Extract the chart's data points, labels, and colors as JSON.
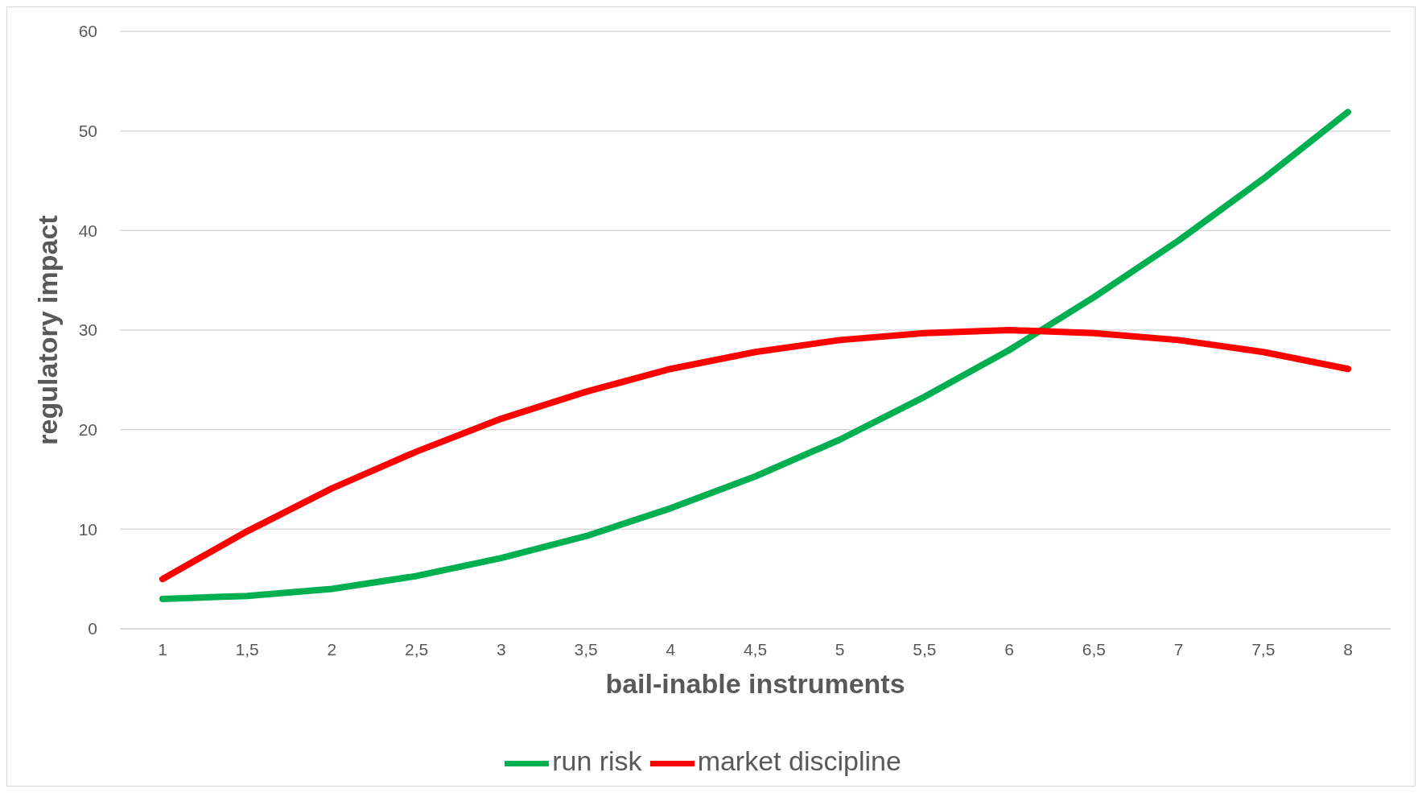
{
  "chart_data": {
    "type": "line",
    "xlabel": "bail-inable instruments",
    "ylabel": "regulatory impact",
    "categories": [
      "1",
      "1,5",
      "2",
      "2,5",
      "3",
      "3,5",
      "4",
      "4,5",
      "5",
      "5,5",
      "6",
      "6,5",
      "7",
      "7,5",
      "8"
    ],
    "series": [
      {
        "name": "run risk",
        "color": "#00b050",
        "values": [
          3.0,
          3.3,
          4.0,
          5.3,
          7.1,
          9.3,
          12.1,
          15.3,
          19.0,
          23.3,
          28.0,
          33.3,
          39.0,
          45.2,
          51.9
        ]
      },
      {
        "name": "market discipline",
        "color": "#ff0000",
        "values": [
          5.0,
          9.8,
          14.1,
          17.8,
          21.1,
          23.8,
          26.1,
          27.8,
          29.0,
          29.7,
          30.0,
          29.7,
          29.0,
          27.8,
          26.1
        ]
      }
    ],
    "ylim": [
      0,
      60
    ],
    "yticks": [
      0,
      10,
      20,
      30,
      40,
      50,
      60
    ],
    "grid": "y",
    "legend": "bottom",
    "marker": "none",
    "line_style": "solid"
  }
}
